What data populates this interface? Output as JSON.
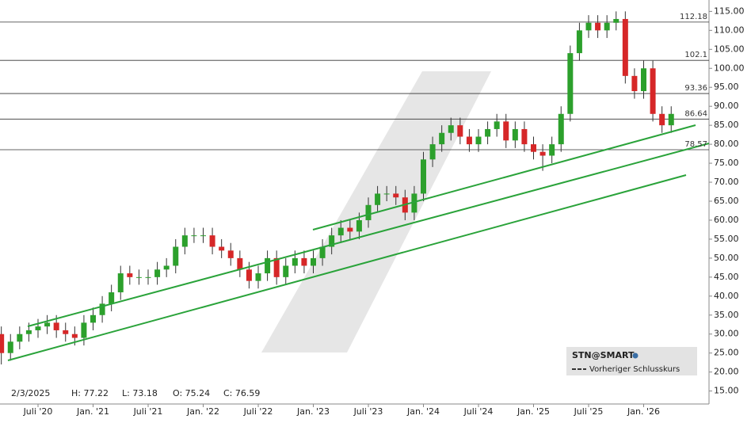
{
  "chart_data": {
    "type": "candlestick",
    "info": {
      "date": "2/3/2025",
      "high": "H: 77.22",
      "low": "L: 73.18",
      "open": "O: 75.24",
      "close": "C: 76.59"
    },
    "legend": {
      "symbol": "STN@SMART",
      "previous_close": "Vorheriger Schlusskurs"
    },
    "categories": [
      null,
      null,
      null,
      null,
      "Juli '20",
      null,
      null,
      null,
      null,
      null,
      "Jan. '21",
      null,
      null,
      null,
      null,
      null,
      "Juli '21",
      null,
      null,
      null,
      null,
      null,
      "Jan. '22",
      null,
      null,
      null,
      null,
      null,
      "Juli '22",
      null,
      null,
      null,
      null,
      null,
      "Jan. '23",
      null,
      null,
      null,
      null,
      null,
      "Juli '23",
      null,
      null,
      null,
      null,
      null,
      "Jan. '24",
      null,
      null,
      null,
      null,
      null,
      "Juli '24",
      null,
      null,
      null,
      null,
      null,
      "Jan. '25",
      null,
      null,
      null,
      null,
      null,
      "Juli '25",
      null,
      null,
      null,
      null,
      null,
      "Jan. '26",
      null,
      null,
      null
    ],
    "open": [
      30,
      25,
      28,
      30,
      31,
      32,
      33,
      31,
      30,
      29,
      33,
      35,
      38,
      41,
      46,
      45,
      45,
      45,
      47,
      48,
      53,
      56,
      56,
      56,
      53,
      52,
      50,
      47,
      44,
      46,
      50,
      45,
      48,
      50,
      48,
      50,
      53,
      56,
      58,
      57,
      60,
      64,
      67,
      67,
      66,
      62,
      67,
      76,
      80,
      83,
      85,
      82,
      80,
      82,
      84,
      86,
      81,
      84,
      80,
      78,
      77,
      80,
      88,
      104,
      110,
      112,
      110,
      112,
      113,
      98,
      94,
      100,
      88,
      85
    ],
    "high": [
      32,
      30,
      32,
      33,
      34,
      35,
      35,
      33,
      32,
      35,
      37,
      40,
      43,
      48,
      48,
      47,
      47,
      49,
      50,
      55,
      58,
      58,
      58,
      58,
      55,
      54,
      52,
      49,
      48,
      52,
      52,
      50,
      52,
      52,
      52,
      55,
      58,
      60,
      60,
      62,
      66,
      69,
      69,
      69,
      68,
      69,
      78,
      82,
      85,
      87,
      87,
      84,
      84,
      86,
      88,
      88,
      86,
      86,
      82,
      80,
      82,
      90,
      106,
      112,
      114,
      114,
      114,
      115,
      115,
      100,
      102,
      102,
      90,
      90
    ],
    "low": [
      22,
      23,
      26,
      28,
      29,
      30,
      29,
      28,
      27,
      27,
      31,
      33,
      36,
      39,
      43,
      43,
      43,
      43,
      45,
      46,
      51,
      54,
      54,
      51,
      50,
      48,
      45,
      42,
      42,
      44,
      43,
      43,
      46,
      46,
      46,
      48,
      51,
      54,
      55,
      55,
      58,
      62,
      65,
      64,
      60,
      60,
      65,
      74,
      78,
      81,
      80,
      78,
      78,
      80,
      82,
      79,
      79,
      78,
      76,
      73,
      75,
      78,
      86,
      102,
      108,
      108,
      108,
      110,
      96,
      92,
      92,
      86,
      83,
      83
    ],
    "close": [
      25,
      28,
      30,
      31,
      32,
      33,
      31,
      30,
      29,
      33,
      35,
      38,
      41,
      46,
      45,
      45,
      45,
      47,
      48,
      53,
      56,
      56,
      56,
      53,
      52,
      50,
      47,
      44,
      46,
      50,
      45,
      48,
      50,
      48,
      50,
      53,
      56,
      58,
      57,
      60,
      64,
      67,
      67,
      66,
      62,
      67,
      76,
      80,
      83,
      85,
      82,
      80,
      82,
      84,
      86,
      81,
      84,
      80,
      78,
      77,
      80,
      88,
      104,
      110,
      112,
      110,
      112,
      113,
      98,
      94,
      100,
      88,
      85,
      88
    ],
    "up_color": "#2ca02c",
    "down_color": "#d62728",
    "levels": [
      112.18,
      102.1,
      93.36,
      86.64,
      78.57
    ],
    "ylim": [
      12,
      118
    ],
    "yticks": [
      {
        "value": 15,
        "label": "15.00"
      },
      {
        "value": 20,
        "label": "20.00"
      },
      {
        "value": 25,
        "label": "25.00"
      },
      {
        "value": 30,
        "label": "30.00"
      },
      {
        "value": 35,
        "label": "35.00"
      },
      {
        "value": 40,
        "label": "40.00"
      },
      {
        "value": 45,
        "label": "45.00"
      },
      {
        "value": 50,
        "label": "50.00"
      },
      {
        "value": 55,
        "label": "55.00"
      },
      {
        "value": 60,
        "label": "60.00"
      },
      {
        "value": 65,
        "label": "65.00"
      },
      {
        "value": 70,
        "label": "70.00"
      },
      {
        "value": 75,
        "label": "75.00"
      },
      {
        "value": 80,
        "label": "80.00"
      },
      {
        "value": 85,
        "label": "85.00"
      },
      {
        "value": 90,
        "label": "90.00"
      },
      {
        "value": 95,
        "label": "95.00"
      },
      {
        "value": 100,
        "label": "100.00"
      },
      {
        "value": 105,
        "label": "105.00"
      },
      {
        "value": 110,
        "label": "110.00"
      },
      {
        "value": 115,
        "label": "115.00"
      }
    ]
  }
}
